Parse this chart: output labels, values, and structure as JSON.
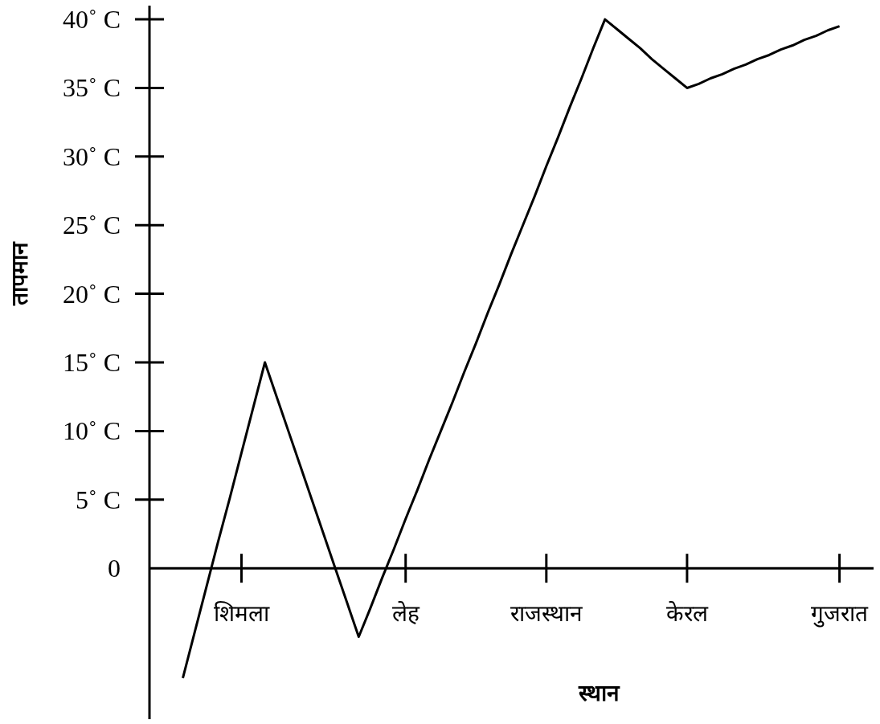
{
  "chart_data": {
    "type": "line",
    "xlabel": "स्थान",
    "ylabel": "तापमान",
    "categories": [
      null,
      null,
      null,
      null,
      null,
      "शिमला",
      null,
      null,
      null,
      null,
      null,
      null,
      null,
      null,
      null,
      null,
      null,
      null,
      null,
      "लेह",
      null,
      null,
      null,
      null,
      null,
      null,
      null,
      null,
      null,
      null,
      null,
      "राजस्थान",
      null,
      null,
      null,
      null,
      null,
      null,
      null,
      null,
      null,
      null,
      null,
      "केरल",
      null,
      null,
      null,
      null,
      null,
      null,
      null,
      null,
      null,
      null,
      null,
      null,
      "गुजरात"
    ],
    "values": [
      -8,
      -4.7,
      -1.4,
      1.9,
      5.1,
      8.4,
      11.7,
      15,
      12.5,
      10,
      7.5,
      5,
      2.5,
      0,
      -2.5,
      -5,
      -2.9,
      -0.7,
      1.4,
      3.6,
      5.7,
      7.9,
      10,
      12.1,
      14.3,
      16.4,
      18.6,
      20.7,
      22.9,
      25,
      27.1,
      29.3,
      31.4,
      33.6,
      35.7,
      37.9,
      40,
      39.3,
      38.6,
      37.9,
      37.1,
      36.4,
      35.7,
      35,
      35.3,
      35.7,
      36,
      36.4,
      36.7,
      37.1,
      37.4,
      37.8,
      38.1,
      38.5,
      38.8,
      39.2,
      39.5
    ],
    "color": "#000000",
    "line_style": "solid",
    "ylim": [
      -11,
      41
    ],
    "yticks": [
      0,
      {
        "value": 5,
        "label": "5˚ C"
      },
      {
        "value": 10,
        "label": "10˚ C"
      },
      {
        "value": 15,
        "label": "15˚ C"
      },
      {
        "value": 20,
        "label": "20˚ C"
      },
      {
        "value": 25,
        "label": "25˚ C"
      },
      {
        "value": 30,
        "label": "30˚ C"
      },
      {
        "value": 35,
        "label": "35˚ C"
      },
      {
        "value": 40,
        "label": "40˚ C"
      }
    ]
  }
}
